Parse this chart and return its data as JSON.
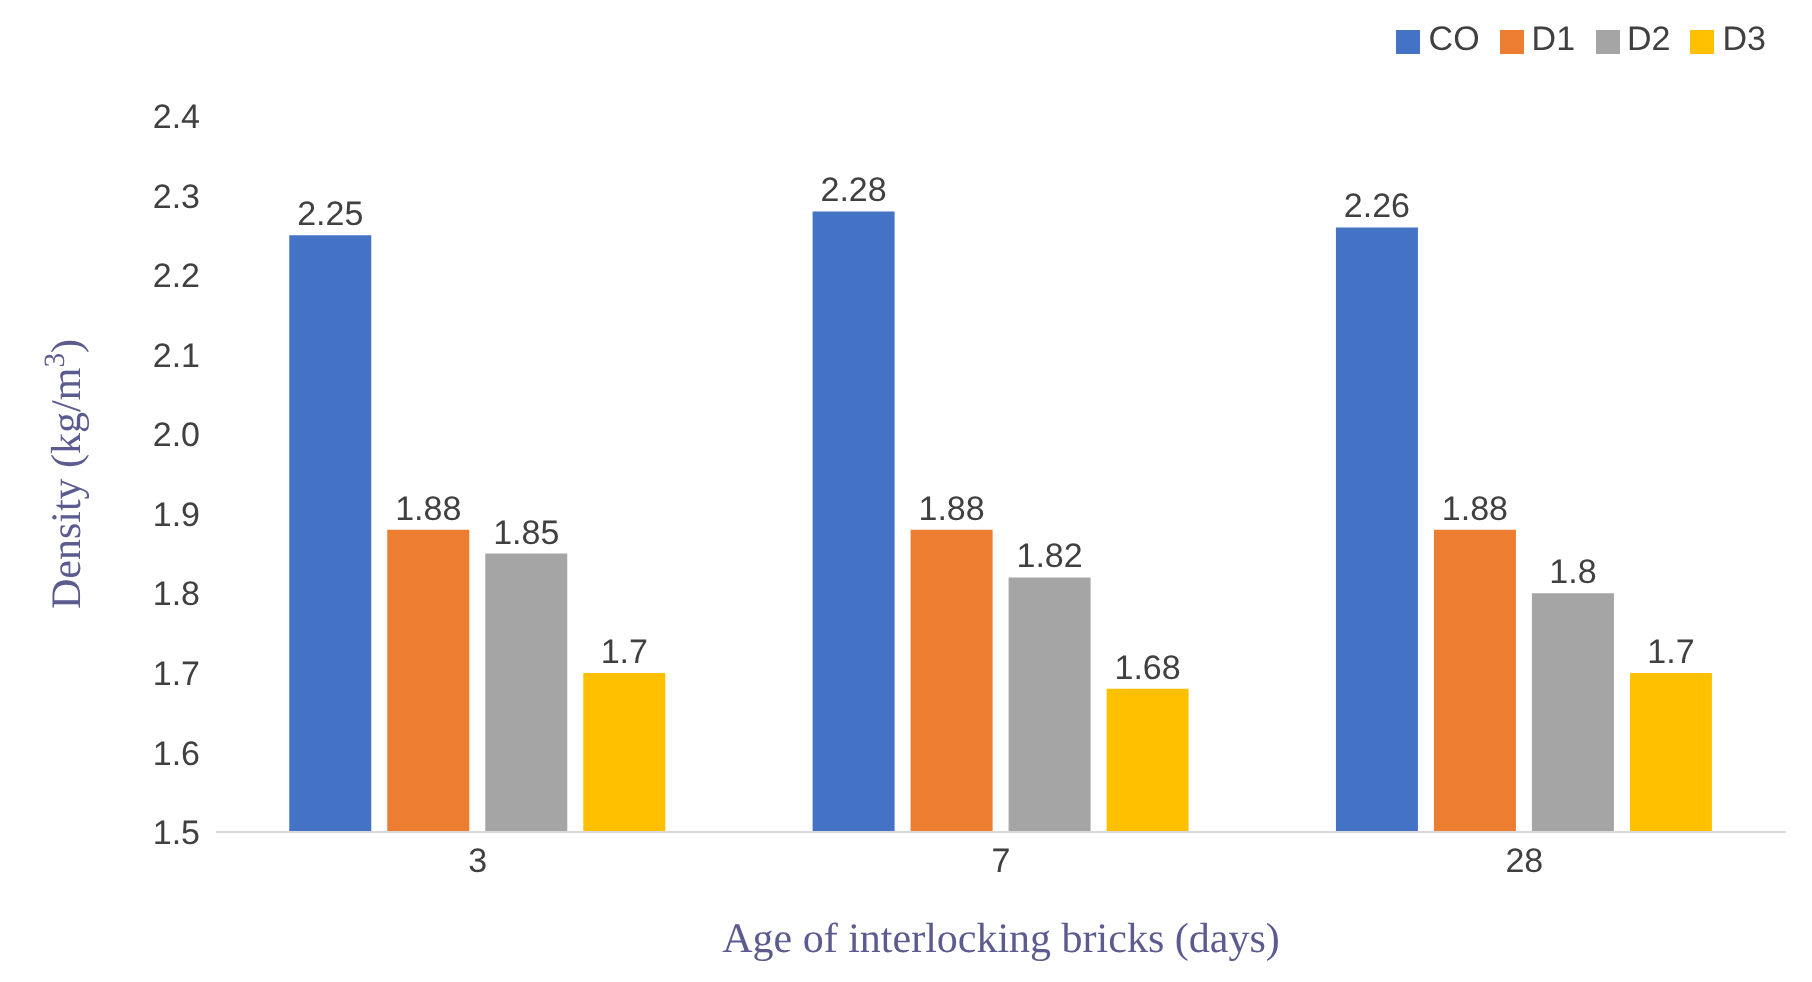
{
  "chart_data": {
    "type": "bar",
    "xlabel": "Age of interlocking bricks (days)",
    "ylabel": "Density (kg/m$^{3}$)",
    "categories": [
      "3",
      "7",
      "28"
    ],
    "series": [
      {
        "name": "CO",
        "color": "#4472c4",
        "values": [
          2.25,
          2.28,
          2.26
        ]
      },
      {
        "name": "D1",
        "color": "#ed7d31",
        "values": [
          1.88,
          1.88,
          1.88
        ]
      },
      {
        "name": "D2",
        "color": "#a5a5a5",
        "values": [
          1.85,
          1.82,
          1.8
        ]
      },
      {
        "name": "D3",
        "color": "#ffc000",
        "values": [
          1.7,
          1.68,
          1.7
        ]
      }
    ],
    "ylim": [
      1.5,
      2.4
    ],
    "yticks": [
      1.5,
      1.6,
      1.7,
      1.8,
      1.9,
      {
        "value": 2,
        "label": "2.0"
      },
      2.1,
      2.2,
      2.3,
      2.4
    ],
    "data_labels": true,
    "legend": "top right"
  }
}
